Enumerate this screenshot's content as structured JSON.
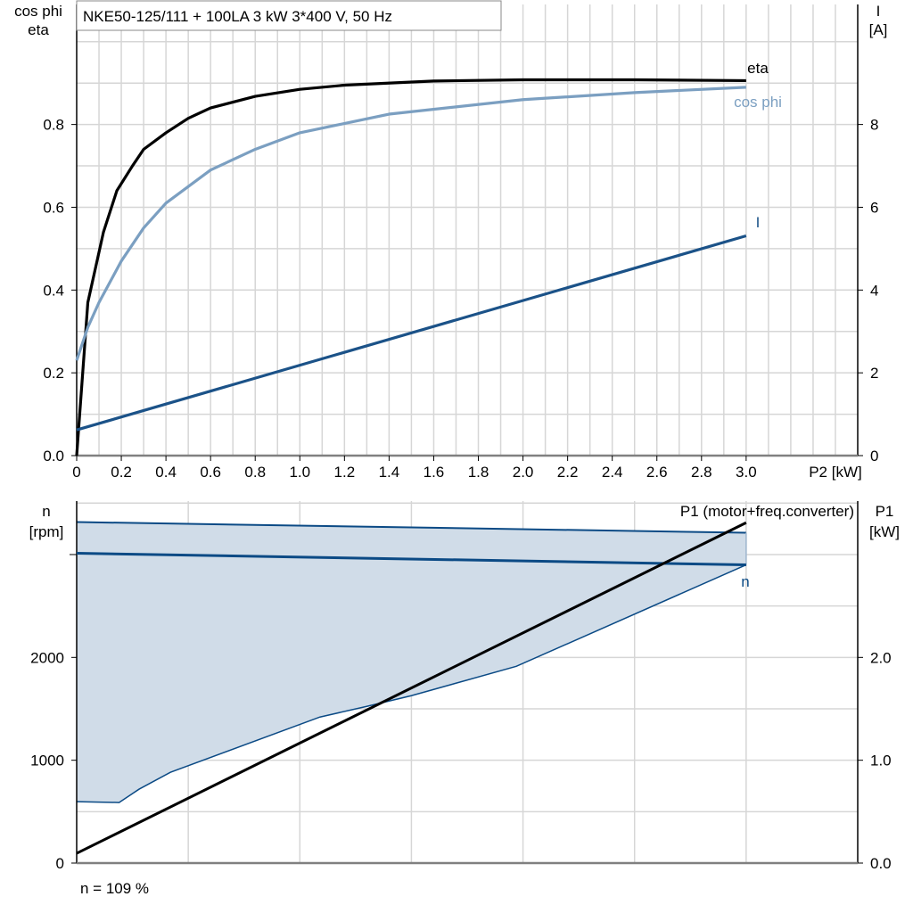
{
  "chart_data": [
    {
      "type": "line",
      "title": "NKE50-125/111 + 100LA   3 kW   3*400 V, 50 Hz",
      "xlabel": "P2 [kW]",
      "ylabel": [
        "cos phi",
        "eta"
      ],
      "y2label": [
        "I",
        "[A]"
      ],
      "xlim": [
        0,
        3.5
      ],
      "ylim": [
        0,
        1.09
      ],
      "y2lim": [
        0,
        10.9
      ],
      "xticks": [
        "0",
        "0.2",
        "0.4",
        "0.6",
        "0.8",
        "1.0",
        "1.2",
        "1.4",
        "1.6",
        "1.8",
        "2.0",
        "2.2",
        "2.4",
        "2.6",
        "2.8",
        "3.0"
      ],
      "yticks": [
        "0.0",
        "0.2",
        "0.4",
        "0.6",
        "0.8"
      ],
      "y2ticks": [
        "0",
        "2",
        "4",
        "6",
        "8"
      ],
      "grid": true,
      "series": [
        {
          "name": "eta",
          "axis": "left",
          "color": "#000000",
          "x": [
            0,
            0.05,
            0.12,
            0.18,
            0.25,
            0.3,
            0.4,
            0.5,
            0.6,
            0.8,
            1.0,
            1.2,
            1.6,
            2.0,
            2.5,
            3.0
          ],
          "y": [
            0,
            0.37,
            0.54,
            0.64,
            0.7,
            0.74,
            0.78,
            0.815,
            0.84,
            0.868,
            0.885,
            0.895,
            0.905,
            0.908,
            0.908,
            0.906
          ]
        },
        {
          "name": "cos phi",
          "axis": "left",
          "color": "#7b9fc1",
          "x": [
            0,
            0.05,
            0.1,
            0.2,
            0.3,
            0.4,
            0.6,
            0.8,
            1.0,
            1.4,
            2.0,
            2.5,
            3.0
          ],
          "y": [
            0.23,
            0.31,
            0.37,
            0.47,
            0.55,
            0.61,
            0.69,
            0.74,
            0.78,
            0.825,
            0.86,
            0.877,
            0.89
          ]
        },
        {
          "name": "I",
          "axis": "right",
          "color": "#1b5288",
          "x": [
            0,
            3.0
          ],
          "y": [
            0.62,
            5.31
          ]
        }
      ]
    },
    {
      "type": "line",
      "xlim": [
        0,
        3.5
      ],
      "ylim": [
        0,
        3520
      ],
      "y2lim": [
        0,
        3.52
      ],
      "ylabel": [
        "n",
        "[rpm]"
      ],
      "y2label": [
        "P1",
        "[kW]"
      ],
      "yticks": [
        "0",
        "1000",
        "2000"
      ],
      "y2ticks": [
        "0.0",
        "1.0",
        "2.0"
      ],
      "grid": true,
      "annotation": "n = 109 %",
      "range_fill_color": "#d0dce8",
      "range_upper": {
        "x": [
          0,
          3.0
        ],
        "y": [
          3316,
          3212
        ]
      },
      "range_lower": {
        "x": [
          0,
          0.19,
          0.28,
          0.42,
          1.09,
          1.3,
          1.5,
          1.97,
          3.0
        ],
        "y": [
          597,
          589,
          719,
          883,
          1420,
          1524,
          1628,
          1913,
          2900
        ]
      },
      "series": [
        {
          "name": "n",
          "axis": "left",
          "color": "#0b4a85",
          "x": [
            0,
            3.0
          ],
          "y": [
            3013,
            2900
          ]
        },
        {
          "name": "P1 (motor+freq.converter)",
          "axis": "right",
          "color": "#000000",
          "x": [
            0,
            3.0
          ],
          "y": [
            0.095,
            3.31
          ]
        }
      ]
    }
  ]
}
